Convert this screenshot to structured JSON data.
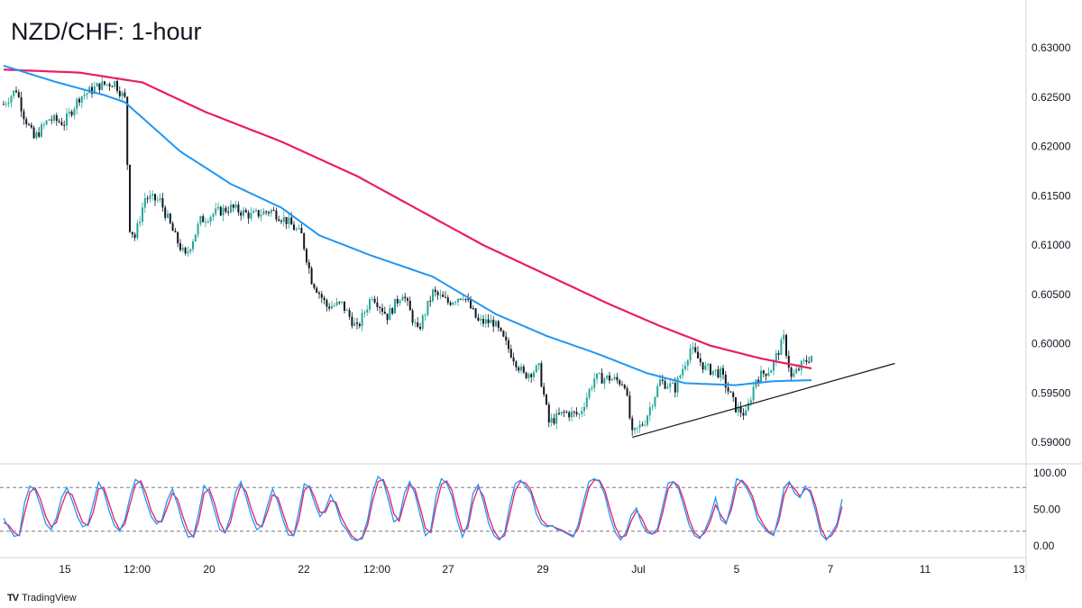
{
  "chart_data": [
    {
      "type": "candlestick",
      "title": "NZD/CHF: 1-hour",
      "x_tick_labels": [
        "15",
        "12:00",
        "20",
        "22",
        "12:00",
        "27",
        "29",
        "Jul",
        "5",
        "7",
        "11",
        "13"
      ],
      "y_tick_labels": [
        "0.63000",
        "0.62500",
        "0.62000",
        "0.61500",
        "0.61000",
        "0.60500",
        "0.60000",
        "0.59500",
        "0.59000"
      ],
      "ylim": [
        0.5885,
        0.6318
      ],
      "grid": false,
      "candle_colors": {
        "up": "#26a69a",
        "down": "#131722"
      },
      "anchors": [
        {
          "i": 0,
          "p": 0.6243
        },
        {
          "i": 5,
          "p": 0.6258
        },
        {
          "i": 8,
          "p": 0.6232
        },
        {
          "i": 12,
          "p": 0.6208
        },
        {
          "i": 18,
          "p": 0.6228
        },
        {
          "i": 24,
          "p": 0.6224
        },
        {
          "i": 30,
          "p": 0.625
        },
        {
          "i": 38,
          "p": 0.6262
        },
        {
          "i": 44,
          "p": 0.6265
        },
        {
          "i": 48,
          "p": 0.6248
        },
        {
          "i": 50,
          "p": 0.6118
        },
        {
          "i": 52,
          "p": 0.6108
        },
        {
          "i": 56,
          "p": 0.6148
        },
        {
          "i": 62,
          "p": 0.6145
        },
        {
          "i": 68,
          "p": 0.6108
        },
        {
          "i": 72,
          "p": 0.6088
        },
        {
          "i": 78,
          "p": 0.6125
        },
        {
          "i": 84,
          "p": 0.6133
        },
        {
          "i": 90,
          "p": 0.6138
        },
        {
          "i": 98,
          "p": 0.613
        },
        {
          "i": 106,
          "p": 0.6135
        },
        {
          "i": 112,
          "p": 0.6125
        },
        {
          "i": 118,
          "p": 0.611
        },
        {
          "i": 122,
          "p": 0.6065
        },
        {
          "i": 128,
          "p": 0.6038
        },
        {
          "i": 134,
          "p": 0.604
        },
        {
          "i": 140,
          "p": 0.6015
        },
        {
          "i": 146,
          "p": 0.605
        },
        {
          "i": 152,
          "p": 0.6028
        },
        {
          "i": 158,
          "p": 0.6052
        },
        {
          "i": 164,
          "p": 0.6012
        },
        {
          "i": 170,
          "p": 0.6052
        },
        {
          "i": 176,
          "p": 0.6042
        },
        {
          "i": 182,
          "p": 0.605
        },
        {
          "i": 188,
          "p": 0.6022
        },
        {
          "i": 194,
          "p": 0.6022
        },
        {
          "i": 200,
          "p": 0.5995
        },
        {
          "i": 206,
          "p": 0.5968
        },
        {
          "i": 212,
          "p": 0.5975
        },
        {
          "i": 216,
          "p": 0.592
        },
        {
          "i": 222,
          "p": 0.593
        },
        {
          "i": 228,
          "p": 0.5928
        },
        {
          "i": 234,
          "p": 0.5965
        },
        {
          "i": 240,
          "p": 0.5965
        },
        {
          "i": 246,
          "p": 0.596
        },
        {
          "i": 249,
          "p": 0.5907
        },
        {
          "i": 254,
          "p": 0.5922
        },
        {
          "i": 260,
          "p": 0.5962
        },
        {
          "i": 266,
          "p": 0.5955
        },
        {
          "i": 272,
          "p": 0.5995
        },
        {
          "i": 278,
          "p": 0.5975
        },
        {
          "i": 284,
          "p": 0.597
        },
        {
          "i": 290,
          "p": 0.5935
        },
        {
          "i": 294,
          "p": 0.5928
        },
        {
          "i": 298,
          "p": 0.5965
        },
        {
          "i": 304,
          "p": 0.5975
        },
        {
          "i": 309,
          "p": 0.6005
        },
        {
          "i": 312,
          "p": 0.5965
        },
        {
          "i": 316,
          "p": 0.5978
        },
        {
          "i": 320,
          "p": 0.5988
        }
      ],
      "candle_count": 321,
      "ma_fast": {
        "color": "#2196f3",
        "anchors": [
          {
            "i": 0,
            "p": 0.6282
          },
          {
            "i": 20,
            "p": 0.6266
          },
          {
            "i": 40,
            "p": 0.6252
          },
          {
            "i": 48,
            "p": 0.6245
          },
          {
            "i": 70,
            "p": 0.6195
          },
          {
            "i": 90,
            "p": 0.6162
          },
          {
            "i": 110,
            "p": 0.6138
          },
          {
            "i": 125,
            "p": 0.611
          },
          {
            "i": 145,
            "p": 0.609
          },
          {
            "i": 170,
            "p": 0.6068
          },
          {
            "i": 195,
            "p": 0.603
          },
          {
            "i": 215,
            "p": 0.6008
          },
          {
            "i": 235,
            "p": 0.599
          },
          {
            "i": 255,
            "p": 0.597
          },
          {
            "i": 270,
            "p": 0.596
          },
          {
            "i": 290,
            "p": 0.5958
          },
          {
            "i": 305,
            "p": 0.5962
          },
          {
            "i": 320,
            "p": 0.5963
          }
        ]
      },
      "ma_slow": {
        "color": "#e91e63",
        "anchors": [
          {
            "i": 0,
            "p": 0.6278
          },
          {
            "i": 30,
            "p": 0.6275
          },
          {
            "i": 55,
            "p": 0.6265
          },
          {
            "i": 80,
            "p": 0.6235
          },
          {
            "i": 110,
            "p": 0.6205
          },
          {
            "i": 140,
            "p": 0.617
          },
          {
            "i": 165,
            "p": 0.6135
          },
          {
            "i": 190,
            "p": 0.61
          },
          {
            "i": 215,
            "p": 0.607
          },
          {
            "i": 240,
            "p": 0.604
          },
          {
            "i": 260,
            "p": 0.6018
          },
          {
            "i": 280,
            "p": 0.5998
          },
          {
            "i": 300,
            "p": 0.5985
          },
          {
            "i": 320,
            "p": 0.5975
          }
        ]
      },
      "trendline": {
        "color": "#131722",
        "from": {
          "i": 249,
          "p": 0.5905
        },
        "to": {
          "i": 353,
          "p": 0.598
        }
      }
    },
    {
      "type": "line",
      "title": "",
      "y_tick_labels": [
        "100.00",
        "50.00",
        "0.00"
      ],
      "ylim": [
        0,
        100
      ],
      "reference_levels": [
        80,
        20
      ],
      "series": [
        {
          "color": "#2196f3",
          "values": [
            38,
            25,
            13,
            15,
            60,
            82,
            76,
            55,
            30,
            22,
            38,
            66,
            80,
            62,
            40,
            26,
            30,
            58,
            87,
            75,
            48,
            28,
            20,
            36,
            68,
            91,
            86,
            62,
            40,
            30,
            35,
            62,
            78,
            56,
            30,
            12,
            14,
            45,
            83,
            73,
            48,
            22,
            18,
            40,
            74,
            88,
            66,
            40,
            22,
            28,
            55,
            78,
            60,
            35,
            15,
            14,
            48,
            85,
            80,
            58,
            40,
            50,
            70,
            56,
            32,
            22,
            10,
            7,
            12,
            35,
            74,
            95,
            88,
            62,
            33,
            38,
            72,
            88,
            72,
            42,
            14,
            22,
            68,
            92,
            86,
            68,
            35,
            12,
            30,
            72,
            84,
            60,
            30,
            14,
            8,
            18,
            56,
            85,
            90,
            82,
            72,
            44,
            30,
            26,
            28,
            22,
            20,
            16,
            12,
            30,
            62,
            88,
            92,
            88,
            70,
            40,
            18,
            8,
            18,
            42,
            52,
            30,
            18,
            16,
            24,
            55,
            86,
            88,
            78,
            54,
            28,
            14,
            10,
            22,
            40,
            66,
            36,
            30,
            58,
            92,
            88,
            78,
            62,
            36,
            26,
            18,
            14,
            42,
            80,
            88,
            72,
            66,
            82,
            72,
            46,
            16,
            8,
            18,
            30,
            64
          ]
        },
        {
          "color": "#e91e63",
          "values": [
            32,
            28,
            18,
            14,
            45,
            74,
            79,
            64,
            40,
            26,
            32,
            55,
            74,
            70,
            50,
            32,
            28,
            46,
            78,
            80,
            58,
            36,
            22,
            30,
            58,
            84,
            89,
            72,
            48,
            34,
            33,
            52,
            72,
            64,
            40,
            20,
            12,
            34,
            72,
            78,
            58,
            32,
            18,
            32,
            62,
            84,
            74,
            50,
            30,
            26,
            46,
            70,
            66,
            44,
            22,
            14,
            36,
            76,
            82,
            66,
            46,
            46,
            62,
            60,
            40,
            26,
            14,
            8,
            10,
            28,
            62,
            88,
            91,
            72,
            44,
            34,
            60,
            84,
            78,
            52,
            24,
            18,
            54,
            84,
            89,
            76,
            46,
            20,
            24,
            60,
            80,
            68,
            40,
            20,
            10,
            14,
            44,
            76,
            88,
            86,
            76,
            54,
            36,
            28,
            27,
            24,
            21,
            17,
            14,
            24,
            52,
            80,
            90,
            90,
            76,
            50,
            26,
            12,
            14,
            34,
            48,
            38,
            22,
            16,
            20,
            46,
            78,
            88,
            82,
            62,
            36,
            18,
            12,
            18,
            34,
            56,
            42,
            32,
            50,
            82,
            90,
            82,
            68,
            44,
            30,
            20,
            16,
            34,
            70,
            86,
            78,
            68,
            78,
            76,
            54,
            24,
            10,
            14,
            26,
            54
          ]
        }
      ]
    }
  ],
  "brand": {
    "label": "TradingView",
    "logo": "TV"
  }
}
